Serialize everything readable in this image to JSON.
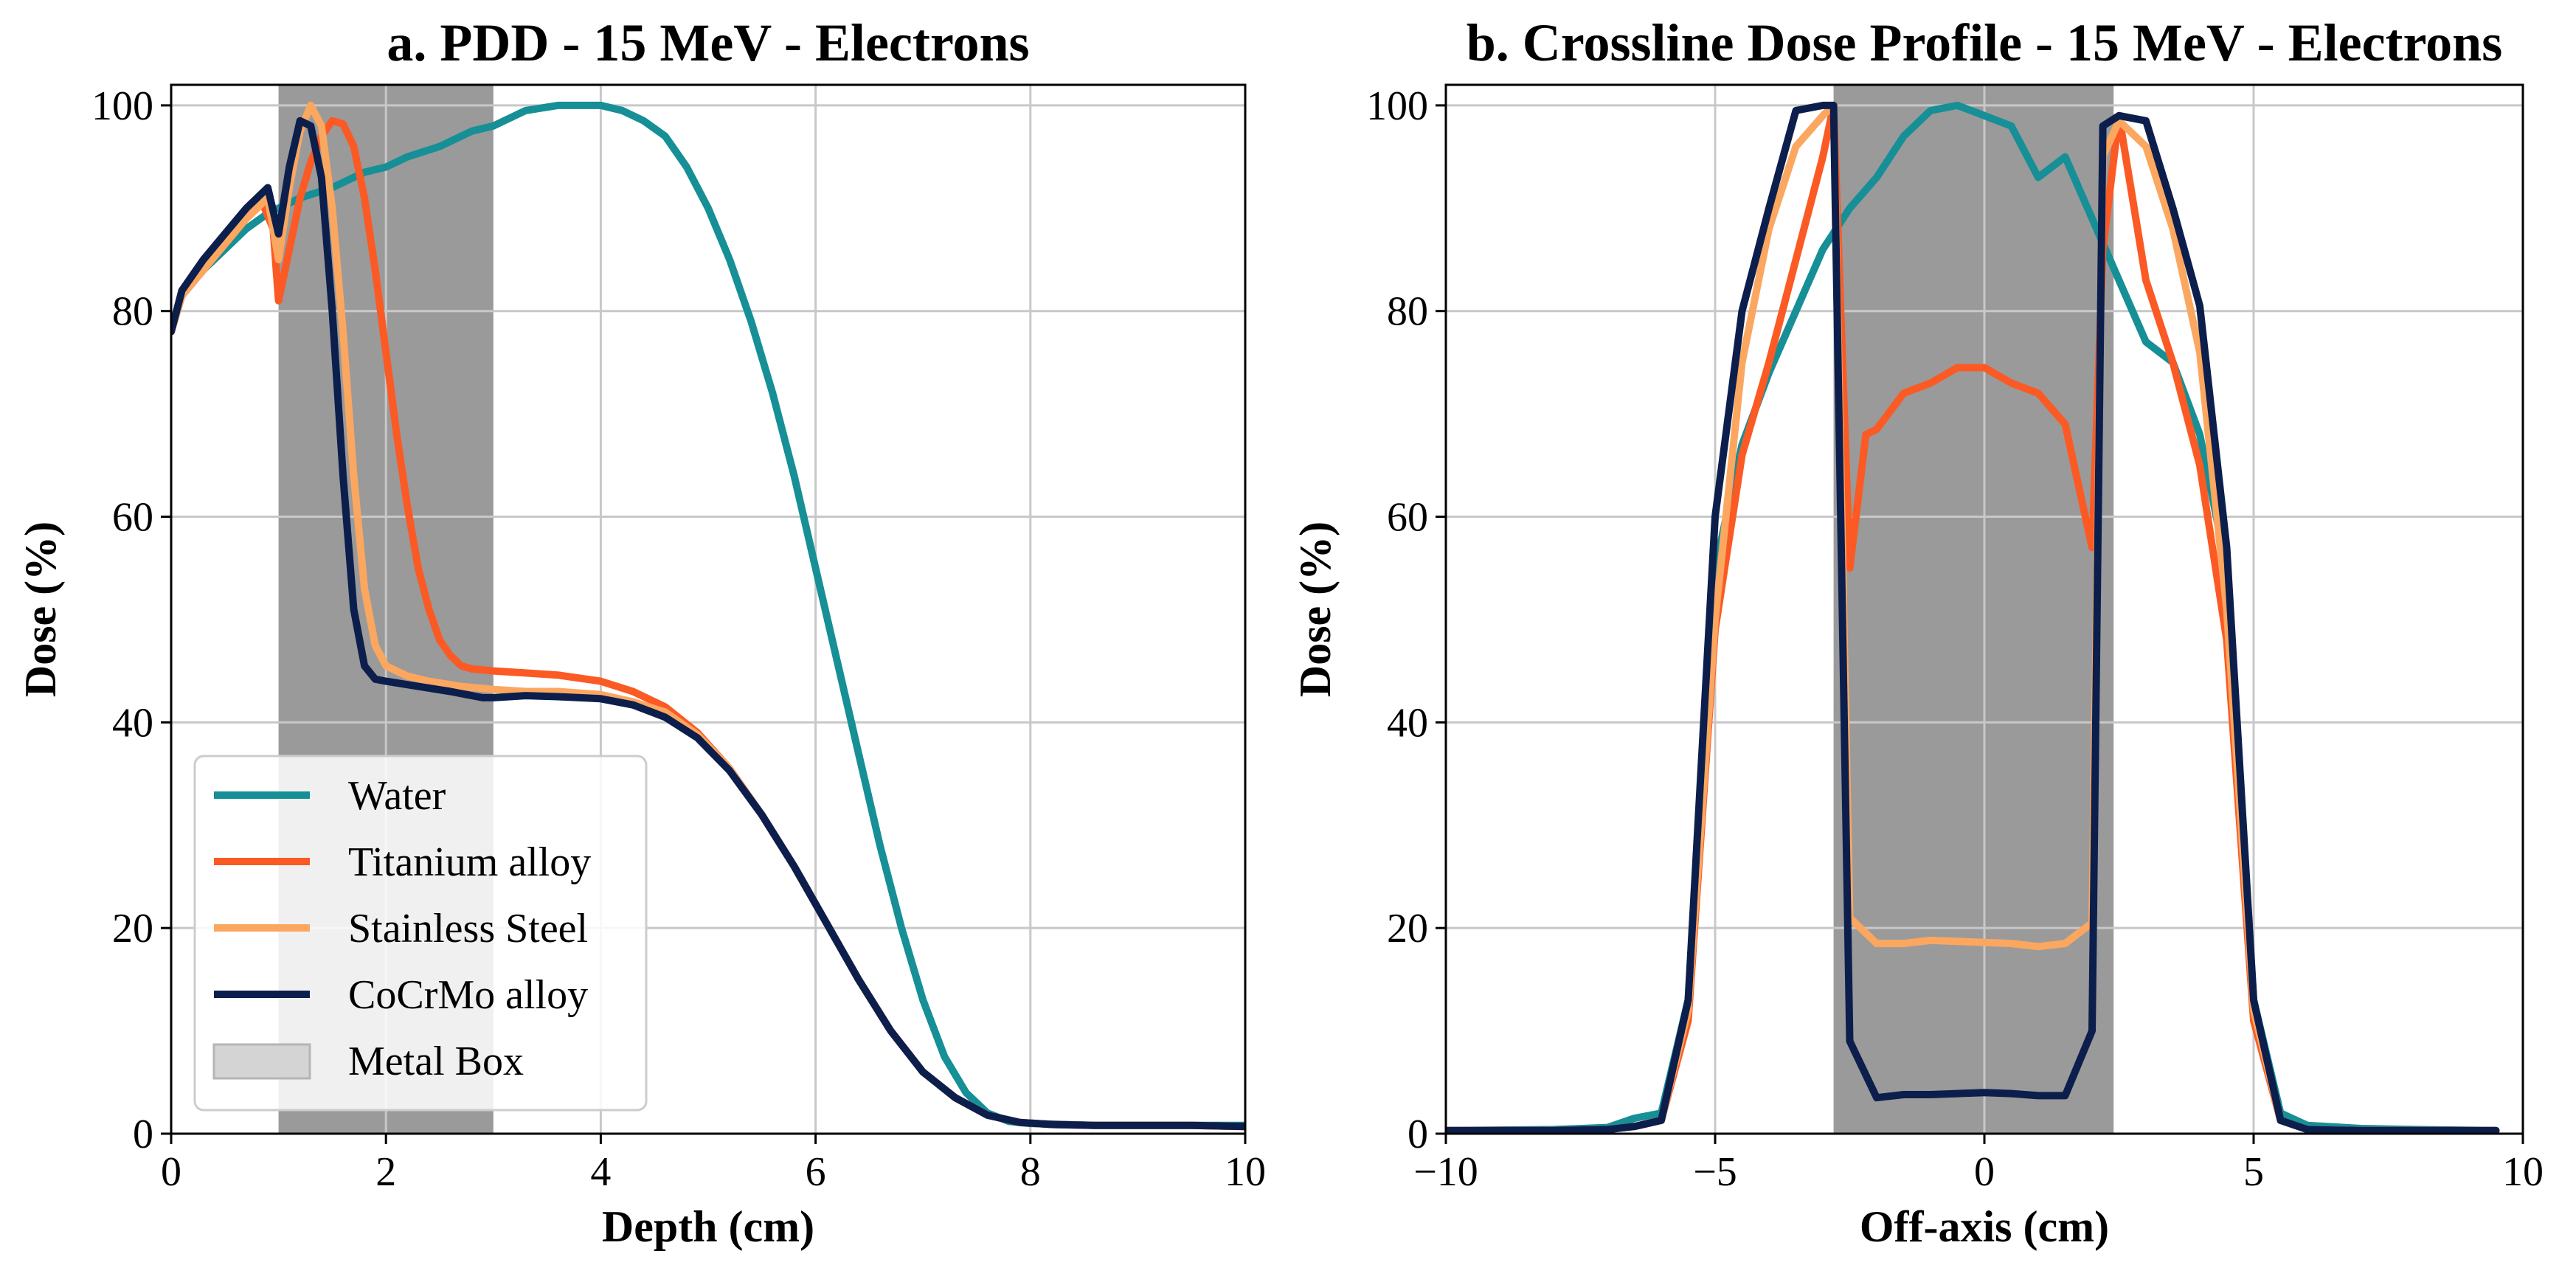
{
  "colors": {
    "water": "#168f96",
    "titanium": "#fb5a24",
    "stainless": "#fba760",
    "cocrmo": "#0c1e4c",
    "metal_box": "#9a9a9a",
    "legend_box": "#d4d4d4"
  },
  "chart_data": [
    {
      "type": "line",
      "title": "a. PDD - 15 MeV - Electrons",
      "xlabel": "Depth (cm)",
      "ylabel": "Dose (%)",
      "xlim": [
        0,
        10
      ],
      "ylim": [
        0,
        102
      ],
      "xticks": [
        0,
        2,
        4,
        6,
        8,
        10
      ],
      "xtick_labels": [
        "0",
        "2",
        "4",
        "6",
        "8",
        "10"
      ],
      "yticks": [
        0,
        20,
        40,
        60,
        80,
        100
      ],
      "ytick_labels": [
        "0",
        "20",
        "40",
        "60",
        "80",
        "100"
      ],
      "grid": true,
      "shaded_region": {
        "label": "Metal Box",
        "x_start": 1.0,
        "x_end": 3.0
      },
      "legend": {
        "position": "lower-left",
        "entries": [
          {
            "label": "Water",
            "series": "water"
          },
          {
            "label": "Titanium alloy",
            "series": "titanium"
          },
          {
            "label": "Stainless Steel",
            "series": "stainless"
          },
          {
            "label": "CoCrMo alloy",
            "series": "cocrmo"
          },
          {
            "label": "Metal Box",
            "series": "metal_box"
          }
        ]
      },
      "series": [
        {
          "key": "water",
          "name": "Water",
          "color": "#168f96",
          "x": [
            0,
            0.1,
            0.3,
            0.5,
            0.7,
            0.9,
            1.0,
            1.2,
            1.5,
            1.8,
            2.0,
            2.2,
            2.5,
            2.8,
            3.0,
            3.3,
            3.6,
            4.0,
            4.2,
            4.4,
            4.6,
            4.8,
            5.0,
            5.2,
            5.4,
            5.6,
            5.8,
            6.0,
            6.2,
            6.4,
            6.6,
            6.8,
            7.0,
            7.2,
            7.4,
            7.6,
            7.8,
            8.0,
            8.3,
            8.6,
            9.0,
            9.5,
            10.0
          ],
          "y": [
            78,
            81.5,
            84,
            86,
            88,
            89.5,
            90,
            91,
            92,
            93.5,
            94,
            95,
            96,
            97.5,
            98,
            99.5,
            100,
            100,
            99.5,
            98.5,
            97,
            94,
            90,
            85,
            79,
            72,
            64,
            55,
            46,
            37,
            28,
            20,
            13,
            7.5,
            4,
            2,
            1.2,
            1,
            0.9,
            0.8,
            0.8,
            0.8,
            0.8
          ]
        },
        {
          "key": "titanium",
          "name": "Titanium alloy",
          "color": "#fb5a24",
          "x": [
            0,
            0.1,
            0.3,
            0.5,
            0.7,
            0.85,
            0.95,
            1.0,
            1.1,
            1.2,
            1.3,
            1.4,
            1.5,
            1.6,
            1.7,
            1.8,
            1.9,
            2.0,
            2.1,
            2.2,
            2.3,
            2.4,
            2.5,
            2.6,
            2.7,
            2.8,
            3.0,
            3.3,
            3.6,
            4.0,
            4.3,
            4.6,
            4.9,
            5.2,
            5.5,
            5.8,
            6.1,
            6.4,
            6.7,
            7.0,
            7.3,
            7.6,
            7.9,
            8.2,
            8.6,
            9.0,
            9.5,
            10.0
          ],
          "y": [
            78,
            81.5,
            84,
            86.5,
            89,
            90.5,
            88,
            81,
            86,
            91,
            94.5,
            97,
            98.5,
            98.2,
            96,
            91,
            84,
            76,
            68,
            61,
            55,
            51,
            48,
            46.5,
            45.5,
            45.2,
            45,
            44.8,
            44.6,
            44,
            43,
            41.5,
            39,
            35.5,
            31,
            26,
            20.5,
            15,
            10,
            6,
            3.5,
            1.8,
            1.1,
            0.9,
            0.8,
            0.8,
            0.8,
            0.7
          ]
        },
        {
          "key": "stainless",
          "name": "Stainless Steel",
          "color": "#fba760",
          "x": [
            0,
            0.1,
            0.3,
            0.5,
            0.7,
            0.9,
            1.0,
            1.1,
            1.2,
            1.3,
            1.4,
            1.5,
            1.6,
            1.7,
            1.8,
            1.9,
            2.0,
            2.2,
            2.4,
            2.7,
            3.0,
            3.3,
            3.6,
            4.0,
            4.3,
            4.6,
            4.9,
            5.2,
            5.5,
            5.8,
            6.1,
            6.4,
            6.7,
            7.0,
            7.3,
            7.6,
            7.9,
            8.2,
            8.6,
            9.0,
            9.5,
            10.0
          ],
          "y": [
            78,
            81.5,
            84,
            86.5,
            89,
            91,
            85,
            92,
            97.5,
            100,
            98,
            90,
            78,
            64,
            53,
            47.5,
            45.5,
            44.5,
            44,
            43.5,
            43.2,
            43,
            43,
            42.7,
            42,
            41,
            38.8,
            35.5,
            31,
            26,
            20.5,
            15,
            10,
            6,
            3.5,
            1.8,
            1.1,
            0.9,
            0.8,
            0.8,
            0.8,
            0.7
          ]
        },
        {
          "key": "cocrmo",
          "name": "CoCrMo alloy",
          "color": "#0c1e4c",
          "x": [
            0,
            0.1,
            0.3,
            0.5,
            0.7,
            0.9,
            1.0,
            1.1,
            1.2,
            1.3,
            1.4,
            1.5,
            1.6,
            1.7,
            1.8,
            1.9,
            2.0,
            2.3,
            2.6,
            2.9,
            3.0,
            3.3,
            3.6,
            4.0,
            4.3,
            4.6,
            4.9,
            5.2,
            5.5,
            5.8,
            6.1,
            6.4,
            6.7,
            7.0,
            7.3,
            7.6,
            7.9,
            8.2,
            8.6,
            9.0,
            9.5,
            10.0
          ],
          "y": [
            78,
            82,
            85,
            87.5,
            90,
            92,
            87.5,
            94,
            98.5,
            98,
            93,
            80,
            64,
            51,
            45.5,
            44.2,
            44,
            43.5,
            43,
            42.4,
            42.4,
            42.6,
            42.5,
            42.3,
            41.7,
            40.5,
            38.5,
            35.3,
            31,
            26,
            20.5,
            15,
            10,
            6,
            3.5,
            1.8,
            1.1,
            0.9,
            0.8,
            0.8,
            0.8,
            0.7
          ]
        }
      ]
    },
    {
      "type": "line",
      "title": "b. Crossline Dose Profile - 15 MeV - Electrons",
      "xlabel": "Off-axis (cm)",
      "ylabel": "Dose (%)",
      "xlim": [
        -10,
        10
      ],
      "ylim": [
        0,
        102
      ],
      "xticks": [
        -10,
        -5,
        0,
        5,
        10
      ],
      "xtick_labels": [
        "−10",
        "−5",
        "0",
        "5",
        "10"
      ],
      "yticks": [
        0,
        20,
        40,
        60,
        80,
        100
      ],
      "ytick_labels": [
        "0",
        "20",
        "40",
        "60",
        "80",
        "100"
      ],
      "grid": true,
      "shaded_region": {
        "label": "Metal Box",
        "x_start": -2.8,
        "x_end": 2.4
      },
      "series": [
        {
          "key": "water",
          "name": "Water",
          "color": "#168f96",
          "x": [
            -10,
            -8,
            -7,
            -6.5,
            -6,
            -5.5,
            -5,
            -4.5,
            -4,
            -3.5,
            -3,
            -2.5,
            -2,
            -1.5,
            -1,
            -0.5,
            0,
            0.5,
            1,
            1.5,
            2,
            2.5,
            3,
            3.5,
            4,
            4.5,
            5,
            5.5,
            6,
            7,
            8,
            9.5
          ],
          "y": [
            0.3,
            0.4,
            0.6,
            1.5,
            2,
            13,
            55,
            67,
            74,
            80,
            86,
            90,
            93,
            97,
            99.5,
            100,
            99,
            98,
            93,
            95,
            89,
            83,
            77,
            75,
            68,
            55,
            13,
            2,
            0.8,
            0.5,
            0.4,
            0.3
          ]
        },
        {
          "key": "titanium",
          "name": "Titanium alloy",
          "color": "#fb5a24",
          "x": [
            -10,
            -8,
            -7,
            -6.5,
            -6,
            -5.5,
            -5,
            -4.5,
            -4,
            -3.5,
            -3,
            -2.8,
            -2.5,
            -2.2,
            -2,
            -1.5,
            -1,
            -0.5,
            0,
            0.5,
            1,
            1.5,
            2,
            2.2,
            2.5,
            3,
            3.5,
            4,
            4.5,
            5,
            5.5,
            6,
            7,
            8,
            9.5
          ],
          "y": [
            0.3,
            0.3,
            0.4,
            0.7,
            1.3,
            11,
            49,
            66,
            75,
            85,
            95,
            100,
            55,
            68,
            68.5,
            72,
            73,
            74.5,
            74.5,
            73,
            72,
            69,
            57,
            86,
            99,
            83,
            75,
            65,
            48,
            11,
            1.3,
            0.4,
            0.3,
            0.3,
            0.3
          ]
        },
        {
          "key": "stainless",
          "name": "Stainless Steel",
          "color": "#fba760",
          "x": [
            -10,
            -8,
            -7,
            -6.5,
            -6,
            -5.5,
            -5,
            -4.5,
            -4,
            -3.5,
            -3,
            -2.8,
            -2.5,
            -2,
            -1.5,
            -1,
            -0.5,
            0,
            0.5,
            1,
            1.5,
            2,
            2.2,
            2.5,
            3,
            3.5,
            4,
            4.5,
            5,
            5.5,
            6,
            7,
            8,
            9.5
          ],
          "y": [
            0.3,
            0.3,
            0.4,
            0.7,
            1.3,
            12,
            50,
            75,
            88,
            96,
            99,
            100,
            21,
            18.5,
            18.5,
            18.8,
            18.7,
            18.6,
            18.5,
            18.2,
            18.5,
            20.5,
            95,
            98.5,
            96,
            88,
            76,
            51,
            12,
            1.3,
            0.4,
            0.3,
            0.3,
            0.3
          ]
        },
        {
          "key": "cocrmo",
          "name": "CoCrMo alloy",
          "color": "#0c1e4c",
          "x": [
            -10,
            -8,
            -7,
            -6.5,
            -6,
            -5.5,
            -5,
            -4.5,
            -4,
            -3.5,
            -3,
            -2.8,
            -2.5,
            -2,
            -1.5,
            -1,
            -0.5,
            0,
            0.5,
            1,
            1.5,
            2,
            2.2,
            2.5,
            3,
            3.5,
            4,
            4.5,
            5,
            5.5,
            6,
            7,
            8,
            9.5
          ],
          "y": [
            0.3,
            0.3,
            0.4,
            0.7,
            1.3,
            13,
            60,
            80,
            90,
            99.5,
            100,
            100,
            9,
            3.5,
            3.8,
            3.8,
            3.9,
            4,
            3.9,
            3.7,
            3.7,
            10,
            98,
            99,
            98.5,
            90,
            80.5,
            57,
            13,
            1.3,
            0.4,
            0.3,
            0.3,
            0.3
          ]
        }
      ]
    }
  ]
}
